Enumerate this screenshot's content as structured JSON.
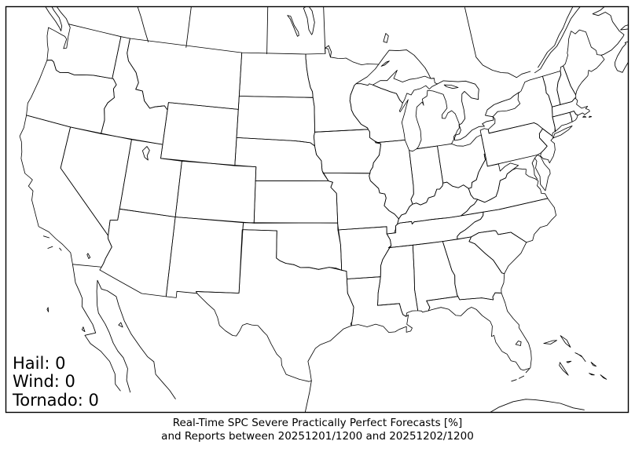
{
  "figure": {
    "annotation": {
      "hail": {
        "label": "Hail:",
        "value": "0"
      },
      "wind": {
        "label": "Wind:",
        "value": "0"
      },
      "tornado": {
        "label": "Tornado:",
        "value": "0"
      }
    },
    "caption": {
      "line1": "Real-Time SPC Severe Practically Perfect Forecasts [%]",
      "line2": "and Reports between 20251201/1200 and 20251202/1200"
    },
    "colors": {
      "outline": "#000000",
      "frame": "#000000",
      "background": "#ffffff"
    }
  }
}
